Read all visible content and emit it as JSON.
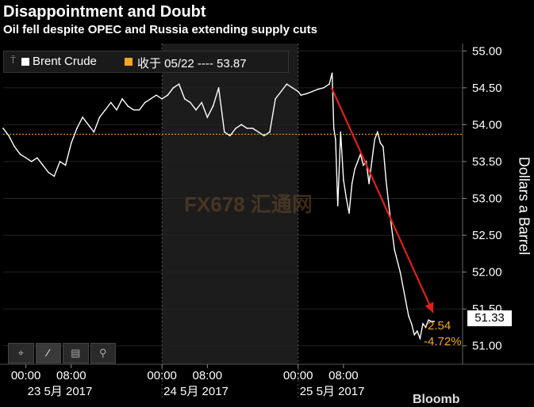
{
  "header": {
    "title": "Disappointment and Doubt",
    "subtitle": "Oil fell despite OPEC and Russia extending supply cuts"
  },
  "legend": {
    "series_name": "Brent Crude",
    "ref_label": "收于 05/22 ---- 53.87",
    "series_color": "#ffffff",
    "ref_color": "#f5a623"
  },
  "toolbar": {
    "icons": [
      "crosshair-icon",
      "draw-line-icon",
      "table-icon",
      "zoom-icon"
    ]
  },
  "watermark": "FX678 汇通网",
  "brand_partial": "Bloomb",
  "last_value": "51.33",
  "change_abs": "-2.54",
  "change_pct": "-4.72%",
  "chart_data": {
    "type": "line",
    "ylabel": "Dollars a Barrel",
    "ylim": [
      50.75,
      55.1
    ],
    "yticks": [
      51.0,
      51.5,
      52.0,
      52.5,
      53.0,
      53.5,
      54.0,
      54.5,
      55.0
    ],
    "xlim_hours": [
      -4,
      77
    ],
    "xticks": [
      {
        "h": 0,
        "label": "00:00"
      },
      {
        "h": 8,
        "label": "08:00"
      },
      {
        "h": 24,
        "label": "00:00"
      },
      {
        "h": 32,
        "label": "08:00"
      },
      {
        "h": 48,
        "label": "00:00"
      },
      {
        "h": 56,
        "label": "08:00"
      }
    ],
    "day_labels": [
      {
        "h": 6,
        "label": "23 5月 2017"
      },
      {
        "h": 30,
        "label": "24 5月 2017"
      },
      {
        "h": 54,
        "label": "25 5月 2017"
      }
    ],
    "shaded_day": [
      24,
      48
    ],
    "reference_line": 53.87,
    "reference_label": "收于 05/22",
    "trend_arrow": {
      "from": [
        53.9,
        54.5
      ],
      "to": [
        71.8,
        51.45
      ]
    },
    "series": [
      {
        "name": "Brent Crude",
        "x": [
          -4,
          -3,
          -2,
          -1,
          0,
          1,
          2,
          3,
          4,
          5,
          6,
          7,
          8,
          9,
          10,
          11,
          12,
          13,
          14,
          15,
          16,
          17,
          18,
          19,
          20,
          21,
          22,
          23,
          24,
          25,
          26,
          27,
          28,
          29,
          30,
          31,
          32,
          33,
          34,
          35,
          36,
          37,
          38,
          39,
          40,
          41,
          42,
          43,
          44,
          45,
          46,
          47,
          48,
          48.5,
          49.5,
          50.5,
          51.5,
          52.5,
          53.5,
          54,
          54.3,
          54.6,
          55,
          55.5,
          56,
          56.5,
          57,
          57.5,
          58,
          58.5,
          59,
          59.5,
          60,
          60.5,
          61,
          61.5,
          62,
          62.5,
          63,
          63.5,
          64,
          64.5,
          65,
          66,
          67,
          67.5,
          68,
          68.5,
          69,
          69.5,
          70,
          70.5,
          71,
          71.5,
          72
        ],
        "y": [
          53.95,
          53.85,
          53.7,
          53.6,
          53.55,
          53.5,
          53.55,
          53.45,
          53.35,
          53.3,
          53.5,
          53.45,
          53.75,
          53.95,
          54.1,
          54.0,
          53.9,
          54.1,
          54.2,
          54.3,
          54.2,
          54.35,
          54.25,
          54.2,
          54.2,
          54.3,
          54.35,
          54.4,
          54.35,
          54.4,
          54.5,
          54.55,
          54.35,
          54.3,
          54.2,
          54.3,
          54.1,
          54.25,
          54.5,
          53.9,
          53.85,
          53.95,
          54.0,
          53.95,
          53.95,
          53.9,
          53.85,
          53.9,
          54.35,
          54.45,
          54.55,
          54.5,
          54.45,
          54.4,
          54.42,
          54.45,
          54.48,
          54.5,
          54.55,
          54.7,
          53.95,
          53.8,
          52.9,
          53.9,
          53.25,
          53.0,
          52.8,
          53.2,
          53.4,
          53.5,
          53.6,
          53.45,
          53.5,
          53.2,
          53.5,
          53.8,
          53.9,
          53.75,
          53.7,
          53.25,
          52.9,
          52.6,
          52.3,
          52.0,
          51.6,
          51.4,
          51.3,
          51.15,
          51.2,
          51.1,
          51.3,
          51.25,
          51.35,
          51.33,
          51.33
        ]
      }
    ]
  }
}
